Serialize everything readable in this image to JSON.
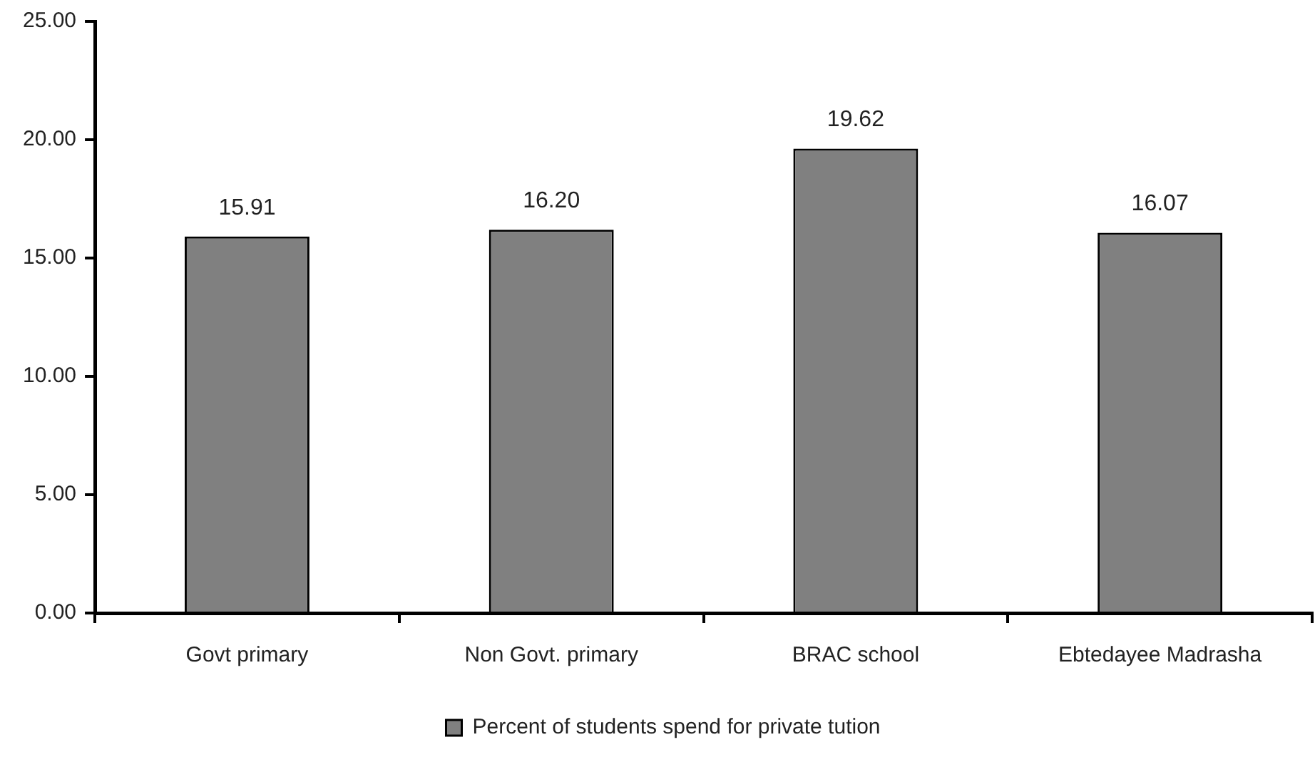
{
  "chart_data": {
    "type": "bar",
    "categories": [
      "Govt primary",
      "Non Govt. primary",
      "BRAC school",
      "Ebtedayee Madrasha"
    ],
    "series": [
      {
        "name": "Percent of students spend for private tution",
        "color": "#808080",
        "values": [
          15.91,
          16.2,
          19.62,
          16.07
        ],
        "value_labels": [
          "15.91",
          "16.20",
          "19.62",
          "16.07"
        ]
      }
    ],
    "ylim": [
      0,
      25
    ],
    "yticks": [
      {
        "value": 0,
        "label": "0.00"
      },
      {
        "value": 5,
        "label": "5.00"
      },
      {
        "value": 10,
        "label": "10.00"
      },
      {
        "value": 15,
        "label": "15.00"
      },
      {
        "value": 20,
        "label": "20.00"
      },
      {
        "value": 25,
        "label": "25.00"
      }
    ],
    "grid": false,
    "legend": "bottom"
  }
}
